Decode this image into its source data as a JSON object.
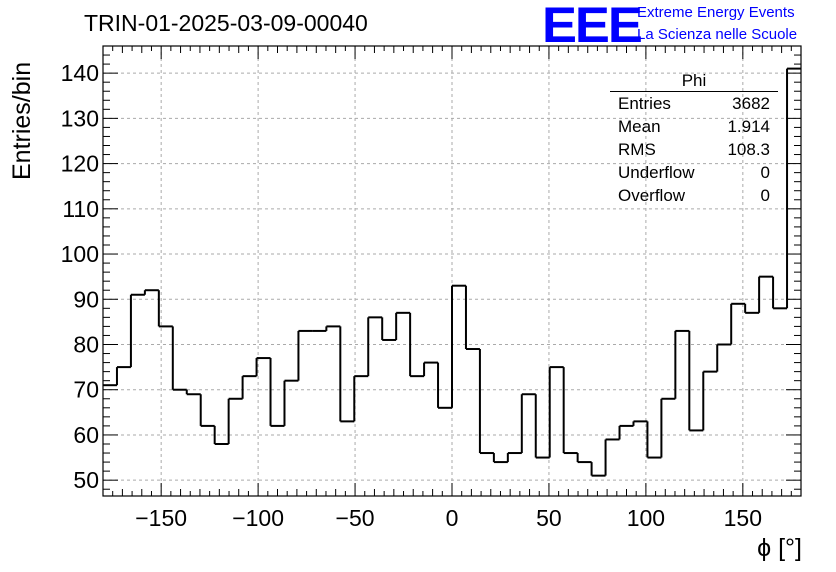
{
  "chart_data": {
    "type": "histogram",
    "title": "TRIN-01-2025-03-09-00040",
    "xlabel": "ϕ [°]",
    "ylabel": "Entries/bin",
    "xlim": [
      -180,
      180
    ],
    "ylim": [
      46.5,
      146
    ],
    "bin_width": 7.2,
    "grid": true,
    "x_ticks": [
      -150,
      -100,
      -50,
      0,
      50,
      100,
      150
    ],
    "x_tick_labels": [
      "−150",
      "−100",
      "−50",
      "0",
      "50",
      "100",
      "150"
    ],
    "y_ticks": [
      50,
      60,
      70,
      80,
      90,
      100,
      110,
      120,
      130,
      140
    ],
    "values": [
      71,
      75,
      91,
      92,
      84,
      70,
      69,
      62,
      58,
      68,
      73,
      77,
      62,
      72,
      83,
      83,
      84,
      63,
      73,
      86,
      81,
      87,
      73,
      76,
      66,
      93,
      79,
      56,
      54,
      56,
      69,
      55,
      75,
      56,
      54,
      51,
      59,
      62,
      63,
      55,
      68,
      83,
      61,
      74,
      80,
      89,
      87,
      95,
      88,
      141
    ],
    "stats_box": {
      "name": "Phi",
      "rows": [
        {
          "label": "Entries",
          "value": "3682"
        },
        {
          "label": "Mean",
          "value": "1.914"
        },
        {
          "label": "RMS",
          "value": "108.3"
        },
        {
          "label": "Underflow",
          "value": "0"
        },
        {
          "label": "Overflow",
          "value": "0"
        }
      ]
    }
  },
  "logo": {
    "mark": "EEE",
    "line1": "Extreme Energy Events",
    "line2": "La Scienza nelle Scuole"
  },
  "colors": {
    "line": "#000000",
    "grid": "#aaaaaa",
    "logo": "#0000ff"
  }
}
